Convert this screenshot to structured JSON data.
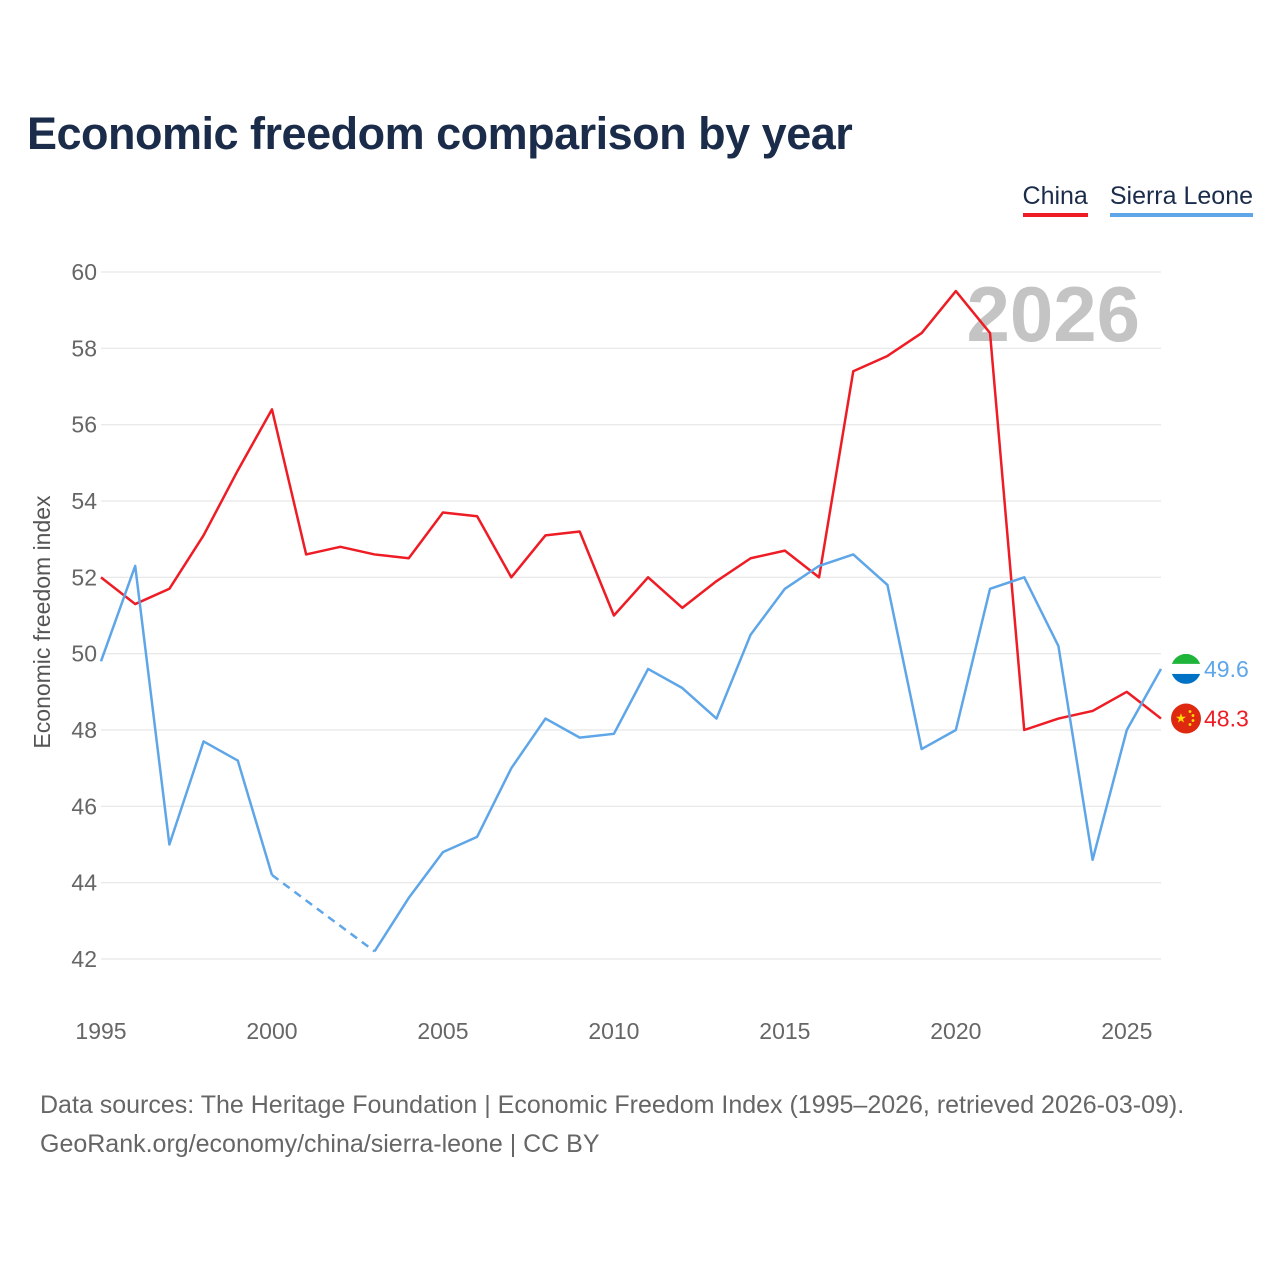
{
  "chart_data": {
    "type": "line",
    "title": "Economic freedom comparison by year",
    "xlabel": "",
    "ylabel": "Economic freedom index",
    "xlim": [
      1995,
      2026
    ],
    "ylim": [
      41,
      60
    ],
    "yticks": [
      42,
      44,
      46,
      48,
      50,
      52,
      54,
      56,
      58,
      60
    ],
    "xticks": [
      1995,
      2000,
      2005,
      2010,
      2015,
      2020,
      2025
    ],
    "watermark_year": "2026",
    "series": [
      {
        "name": "China",
        "color": "#ee1c25",
        "end_label": "48.3",
        "x": [
          1995,
          1996,
          1997,
          1998,
          1999,
          2000,
          2001,
          2002,
          2003,
          2004,
          2005,
          2006,
          2007,
          2008,
          2009,
          2010,
          2011,
          2012,
          2013,
          2014,
          2015,
          2016,
          2017,
          2018,
          2019,
          2020,
          2021,
          2022,
          2023,
          2024,
          2025,
          2026
        ],
        "values": [
          52.0,
          51.3,
          51.7,
          53.1,
          54.8,
          56.4,
          52.6,
          52.8,
          52.6,
          52.5,
          53.7,
          53.6,
          52.0,
          53.1,
          53.2,
          51.0,
          52.0,
          51.2,
          51.9,
          52.5,
          52.7,
          52.0,
          57.4,
          57.8,
          58.4,
          59.5,
          58.4,
          48.0,
          48.3,
          48.5,
          49.0,
          48.3
        ]
      },
      {
        "name": "Sierra Leone",
        "color": "#5ea6e8",
        "end_label": "49.6",
        "x": [
          1995,
          1996,
          1997,
          1998,
          1999,
          2000,
          2003,
          2004,
          2005,
          2006,
          2007,
          2008,
          2009,
          2010,
          2011,
          2012,
          2013,
          2014,
          2015,
          2016,
          2017,
          2018,
          2019,
          2020,
          2021,
          2022,
          2023,
          2024,
          2025,
          2026
        ],
        "values": [
          49.8,
          52.3,
          45.0,
          47.7,
          47.2,
          44.2,
          42.2,
          43.6,
          44.8,
          45.2,
          47.0,
          48.3,
          47.8,
          47.9,
          49.6,
          49.1,
          48.3,
          50.5,
          51.7,
          52.3,
          52.6,
          51.8,
          47.5,
          48.0,
          51.7,
          52.0,
          50.2,
          44.6,
          48.0,
          49.6
        ],
        "dashed_gap": [
          2000,
          2003
        ]
      }
    ]
  },
  "legend": [
    "China",
    "Sierra Leone"
  ],
  "footer": {
    "line1": "Data sources: The Heritage Foundation | Economic Freedom Index (1995–2026, retrieved 2026-03-09).",
    "line2": "GeoRank.org/economy/china/sierra-leone | CC BY"
  }
}
